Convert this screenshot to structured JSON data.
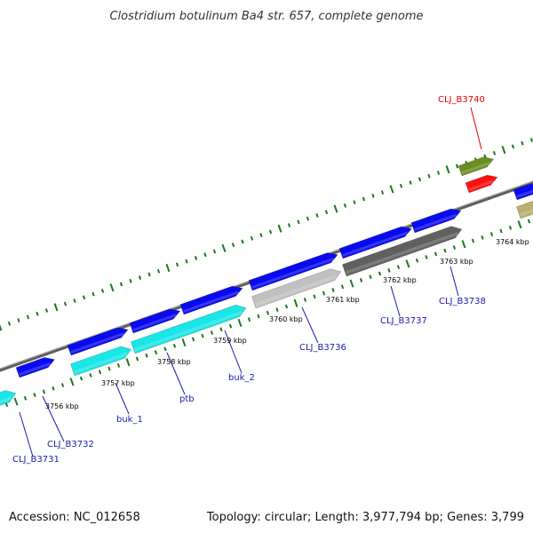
{
  "title": "Clostridium botulinum Ba4 str. 657, complete genome",
  "footer": {
    "accession": "Accession: NC_012658",
    "summary": "Topology: circular; Length: 3,977,794 bp; Genes: 3,799"
  },
  "colors": {
    "background": "#ffffff",
    "backbone": "#808080",
    "tick": "#1a7a1a",
    "gene_blue": "#0a0af0",
    "gene_cyan": "#19e6e6",
    "gene_lightgray": "#c0c0c0",
    "gene_darkgray": "#606060",
    "gene_olive": "#6b8e23",
    "gene_red": "#ff1010",
    "gene_khaki": "#b8b070",
    "label_blue": "#1a1ab0",
    "label_red": "#e00000"
  },
  "kbp_labels": [
    "3756 kbp",
    "3757 kbp",
    "3758 kbp",
    "3759 kbp",
    "3760 kbp",
    "3761 kbp",
    "3762 kbp",
    "3763 kbp",
    "3764 kbp"
  ],
  "gene_labels": [
    {
      "text": "CLJ_B3731",
      "color": "blue"
    },
    {
      "text": "CLJ_B3732",
      "color": "blue"
    },
    {
      "text": "buk_1",
      "color": "blue"
    },
    {
      "text": "ptb",
      "color": "blue"
    },
    {
      "text": "buk_2",
      "color": "blue"
    },
    {
      "text": "CLJ_B3736",
      "color": "blue"
    },
    {
      "text": "CLJ_B3737",
      "color": "blue"
    },
    {
      "text": "CLJ_B3738",
      "color": "blue"
    },
    {
      "text": "CLJ_B3740",
      "color": "red"
    }
  ]
}
